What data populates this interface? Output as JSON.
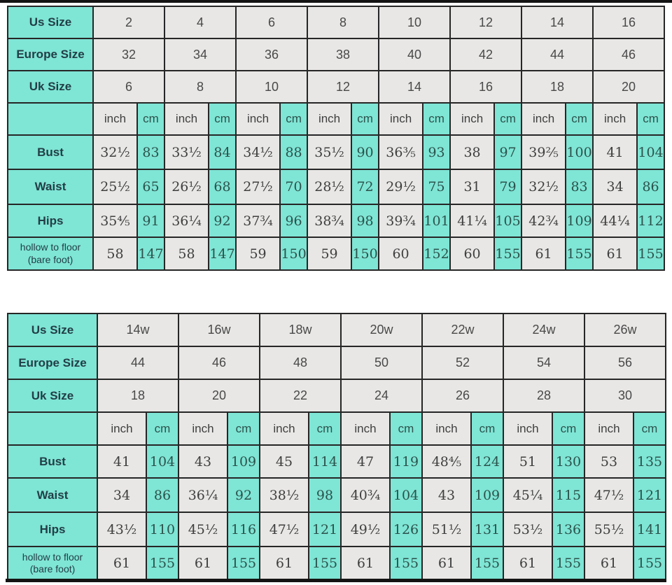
{
  "colors": {
    "teal": "#7fe5d5",
    "gray": "#e8e7e5",
    "border": "#262626"
  },
  "units": {
    "inch": "inch",
    "cm": "cm"
  },
  "table1": {
    "size_rows": [
      {
        "label": "Us Size",
        "values": [
          "2",
          "4",
          "6",
          "8",
          "10",
          "12",
          "14",
          "16"
        ]
      },
      {
        "label": "Europe Size",
        "values": [
          "32",
          "34",
          "36",
          "38",
          "40",
          "42",
          "44",
          "46"
        ]
      },
      {
        "label": "Uk Size",
        "values": [
          "6",
          "8",
          "10",
          "12",
          "14",
          "16",
          "18",
          "20"
        ]
      }
    ],
    "measure_rows": [
      {
        "label": "Bust",
        "pairs": [
          [
            "32½",
            "83"
          ],
          [
            "33½",
            "84"
          ],
          [
            "34½",
            "88"
          ],
          [
            "35½",
            "90"
          ],
          [
            "36⅗",
            "93"
          ],
          [
            "38",
            "97"
          ],
          [
            "39⅖",
            "100"
          ],
          [
            "41",
            "104"
          ]
        ]
      },
      {
        "label": "Waist",
        "pairs": [
          [
            "25½",
            "65"
          ],
          [
            "26½",
            "68"
          ],
          [
            "27½",
            "70"
          ],
          [
            "28½",
            "72"
          ],
          [
            "29½",
            "75"
          ],
          [
            "31",
            "79"
          ],
          [
            "32½",
            "83"
          ],
          [
            "34",
            "86"
          ]
        ]
      },
      {
        "label": "Hips",
        "pairs": [
          [
            "35⅘",
            "91"
          ],
          [
            "36¼",
            "92"
          ],
          [
            "37¾",
            "96"
          ],
          [
            "38¾",
            "98"
          ],
          [
            "39¾",
            "101"
          ],
          [
            "41¼",
            "105"
          ],
          [
            "42¾",
            "109"
          ],
          [
            "44¼",
            "112"
          ]
        ]
      },
      {
        "label": "hollow to floor",
        "label2": "(bare foot)",
        "pairs": [
          [
            "58",
            "147"
          ],
          [
            "58",
            "147"
          ],
          [
            "59",
            "150"
          ],
          [
            "59",
            "150"
          ],
          [
            "60",
            "152"
          ],
          [
            "60",
            "155"
          ],
          [
            "61",
            "155"
          ],
          [
            "61",
            "155"
          ]
        ]
      }
    ]
  },
  "table2": {
    "size_rows": [
      {
        "label": "Us Size",
        "values": [
          "14w",
          "16w",
          "18w",
          "20w",
          "22w",
          "24w",
          "26w"
        ]
      },
      {
        "label": "Europe Size",
        "values": [
          "44",
          "46",
          "48",
          "50",
          "52",
          "54",
          "56"
        ]
      },
      {
        "label": "Uk Size",
        "values": [
          "18",
          "20",
          "22",
          "24",
          "26",
          "28",
          "30"
        ]
      }
    ],
    "measure_rows": [
      {
        "label": "Bust",
        "pairs": [
          [
            "41",
            "104"
          ],
          [
            "43",
            "109"
          ],
          [
            "45",
            "114"
          ],
          [
            "47",
            "119"
          ],
          [
            "48⅘",
            "124"
          ],
          [
            "51",
            "130"
          ],
          [
            "53",
            "135"
          ]
        ]
      },
      {
        "label": "Waist",
        "pairs": [
          [
            "34",
            "86"
          ],
          [
            "36¼",
            "92"
          ],
          [
            "38½",
            "98"
          ],
          [
            "40¾",
            "104"
          ],
          [
            "43",
            "109"
          ],
          [
            "45¼",
            "115"
          ],
          [
            "47½",
            "121"
          ]
        ]
      },
      {
        "label": "Hips",
        "pairs": [
          [
            "43½",
            "110"
          ],
          [
            "45½",
            "116"
          ],
          [
            "47½",
            "121"
          ],
          [
            "49½",
            "126"
          ],
          [
            "51½",
            "131"
          ],
          [
            "53½",
            "136"
          ],
          [
            "55½",
            "141"
          ]
        ]
      },
      {
        "label": "hollow to floor",
        "label2": "(bare foot)",
        "pairs": [
          [
            "61",
            "155"
          ],
          [
            "61",
            "155"
          ],
          [
            "61",
            "155"
          ],
          [
            "61",
            "155"
          ],
          [
            "61",
            "155"
          ],
          [
            "61",
            "155"
          ],
          [
            "61",
            "155"
          ]
        ]
      }
    ]
  }
}
